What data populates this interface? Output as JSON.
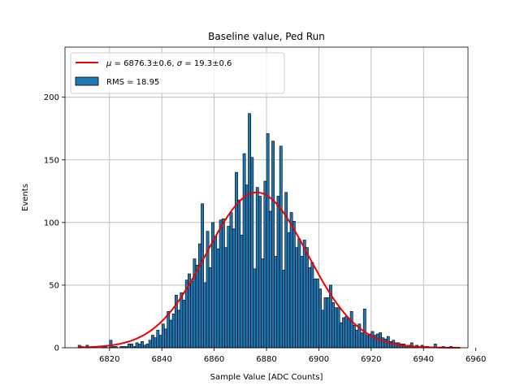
{
  "chart_data": {
    "type": "bar",
    "title": "Baseline value, Ped Run",
    "xlabel": "Sample Value [ADC Counts]",
    "ylabel": "Events",
    "xlim": [
      6803,
      6957
    ],
    "ylim": [
      0,
      240
    ],
    "xticks": [
      6820,
      6840,
      6860,
      6880,
      6900,
      6920,
      6940,
      6960
    ],
    "yticks": [
      0,
      50,
      100,
      150,
      200
    ],
    "grid": true,
    "legend_position": "top-left",
    "bin_width": 1,
    "bins": [
      [
        6808,
        2
      ],
      [
        6809,
        1
      ],
      [
        6811,
        2
      ],
      [
        6814,
        1
      ],
      [
        6817,
        1
      ],
      [
        6818,
        1
      ],
      [
        6820,
        6
      ],
      [
        6821,
        1
      ],
      [
        6822,
        1
      ],
      [
        6824,
        1
      ],
      [
        6825,
        1
      ],
      [
        6826,
        1
      ],
      [
        6827,
        3
      ],
      [
        6828,
        3
      ],
      [
        6829,
        1
      ],
      [
        6830,
        4
      ],
      [
        6831,
        3
      ],
      [
        6832,
        5
      ],
      [
        6833,
        2
      ],
      [
        6834,
        3
      ],
      [
        6835,
        6
      ],
      [
        6836,
        10
      ],
      [
        6837,
        8
      ],
      [
        6838,
        14
      ],
      [
        6839,
        10
      ],
      [
        6840,
        19
      ],
      [
        6841,
        15
      ],
      [
        6842,
        29
      ],
      [
        6843,
        22
      ],
      [
        6844,
        27
      ],
      [
        6845,
        42
      ],
      [
        6846,
        30
      ],
      [
        6847,
        44
      ],
      [
        6848,
        38
      ],
      [
        6849,
        54
      ],
      [
        6850,
        59
      ],
      [
        6851,
        53
      ],
      [
        6852,
        71
      ],
      [
        6853,
        66
      ],
      [
        6854,
        83
      ],
      [
        6855,
        115
      ],
      [
        6856,
        52
      ],
      [
        6857,
        93
      ],
      [
        6858,
        64
      ],
      [
        6859,
        100
      ],
      [
        6860,
        89
      ],
      [
        6861,
        79
      ],
      [
        6862,
        102
      ],
      [
        6863,
        103
      ],
      [
        6864,
        80
      ],
      [
        6865,
        97
      ],
      [
        6866,
        108
      ],
      [
        6867,
        95
      ],
      [
        6868,
        140
      ],
      [
        6869,
        118
      ],
      [
        6870,
        90
      ],
      [
        6871,
        155
      ],
      [
        6872,
        130
      ],
      [
        6873,
        187
      ],
      [
        6874,
        152
      ],
      [
        6875,
        63
      ],
      [
        6876,
        128
      ],
      [
        6877,
        121
      ],
      [
        6878,
        71
      ],
      [
        6879,
        133
      ],
      [
        6880,
        171
      ],
      [
        6881,
        109
      ],
      [
        6882,
        165
      ],
      [
        6883,
        73
      ],
      [
        6884,
        121
      ],
      [
        6885,
        161
      ],
      [
        6886,
        62
      ],
      [
        6887,
        124
      ],
      [
        6888,
        92
      ],
      [
        6889,
        108
      ],
      [
        6890,
        101
      ],
      [
        6891,
        80
      ],
      [
        6892,
        87
      ],
      [
        6893,
        73
      ],
      [
        6894,
        86
      ],
      [
        6895,
        80
      ],
      [
        6896,
        64
      ],
      [
        6897,
        68
      ],
      [
        6898,
        55
      ],
      [
        6899,
        55
      ],
      [
        6900,
        47
      ],
      [
        6901,
        30
      ],
      [
        6902,
        40
      ],
      [
        6903,
        40
      ],
      [
        6904,
        50
      ],
      [
        6905,
        36
      ],
      [
        6906,
        32
      ],
      [
        6907,
        32
      ],
      [
        6908,
        20
      ],
      [
        6909,
        24
      ],
      [
        6910,
        25
      ],
      [
        6911,
        23
      ],
      [
        6912,
        29
      ],
      [
        6913,
        18
      ],
      [
        6914,
        14
      ],
      [
        6915,
        19
      ],
      [
        6916,
        12
      ],
      [
        6917,
        31
      ],
      [
        6918,
        10
      ],
      [
        6919,
        11
      ],
      [
        6920,
        13
      ],
      [
        6921,
        10
      ],
      [
        6922,
        11
      ],
      [
        6923,
        12
      ],
      [
        6924,
        8
      ],
      [
        6925,
        7
      ],
      [
        6926,
        9
      ],
      [
        6927,
        5
      ],
      [
        6928,
        6
      ],
      [
        6929,
        4
      ],
      [
        6930,
        4
      ],
      [
        6931,
        3
      ],
      [
        6932,
        3
      ],
      [
        6933,
        2
      ],
      [
        6934,
        2
      ],
      [
        6935,
        4
      ],
      [
        6936,
        1
      ],
      [
        6937,
        2
      ],
      [
        6939,
        2
      ],
      [
        6940,
        1
      ],
      [
        6941,
        1
      ],
      [
        6944,
        3
      ],
      [
        6947,
        1
      ],
      [
        6950,
        1
      ]
    ],
    "fit": {
      "type": "gaussian",
      "amplitude": 124,
      "mu": 6876.3,
      "sigma": 19.3,
      "x_range": [
        6808,
        6954
      ],
      "color": "#ee0000"
    },
    "bar_color": "#1f77b4",
    "bar_edge_color": "#000000",
    "legend": {
      "fit_label_mu_symbol": "μ",
      "fit_label_mu_rest": " = 6876.3±0.6, ",
      "fit_label_sigma_symbol": "σ",
      "fit_label_sigma_rest": " = 19.3±0.6",
      "hist_label": "RMS = 18.95"
    }
  }
}
